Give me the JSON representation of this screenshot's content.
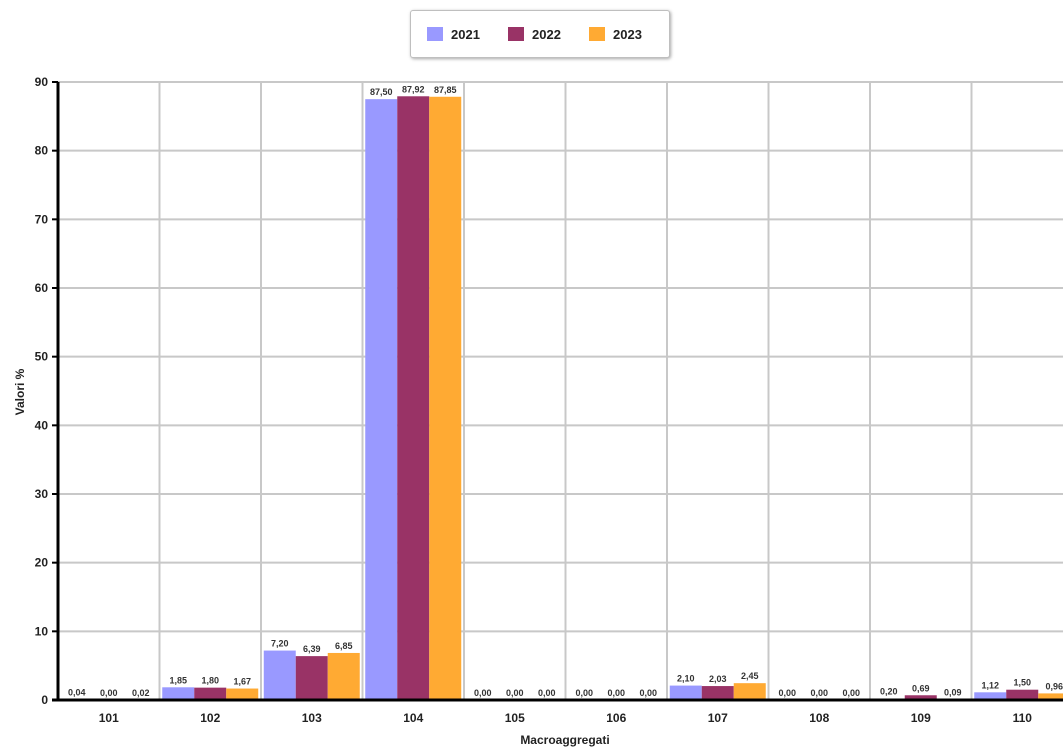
{
  "chart_data": {
    "type": "bar",
    "title": "",
    "xlabel": "Macroaggregati",
    "ylabel": "Valori %",
    "ylim": [
      0,
      90
    ],
    "yticks": [
      0,
      10,
      20,
      30,
      40,
      50,
      60,
      70,
      80,
      90
    ],
    "grid": true,
    "legend_position": "top-center",
    "categories": [
      "101",
      "102",
      "103",
      "104",
      "105",
      "106",
      "107",
      "108",
      "109",
      "110"
    ],
    "series": [
      {
        "name": "2021",
        "color": "#9999ff",
        "values": [
          0.04,
          1.85,
          7.2,
          87.5,
          0.0,
          0.0,
          2.1,
          0.0,
          0.2,
          1.12
        ],
        "labels": [
          "0,04",
          "1,85",
          "7,20",
          "87,50",
          "0,00",
          "0,00",
          "2,10",
          "0,00",
          "0,20",
          "1,12"
        ]
      },
      {
        "name": "2022",
        "color": "#993366",
        "values": [
          0.0,
          1.8,
          6.39,
          87.92,
          0.0,
          0.0,
          2.03,
          0.0,
          0.69,
          1.5
        ],
        "labels": [
          "0,00",
          "1,80",
          "6,39",
          "87,92",
          "0,00",
          "0,00",
          "2,03",
          "0,00",
          "0,69",
          "1,50"
        ]
      },
      {
        "name": "2023",
        "color": "#ffaa33",
        "values": [
          0.02,
          1.67,
          6.85,
          87.85,
          0.0,
          0.0,
          2.45,
          0.0,
          0.09,
          0.96
        ],
        "labels": [
          "0,02",
          "1,67",
          "6,85",
          "87,85",
          "0,00",
          "0,00",
          "2,45",
          "0,00",
          "0,09",
          "0,96"
        ]
      }
    ]
  }
}
